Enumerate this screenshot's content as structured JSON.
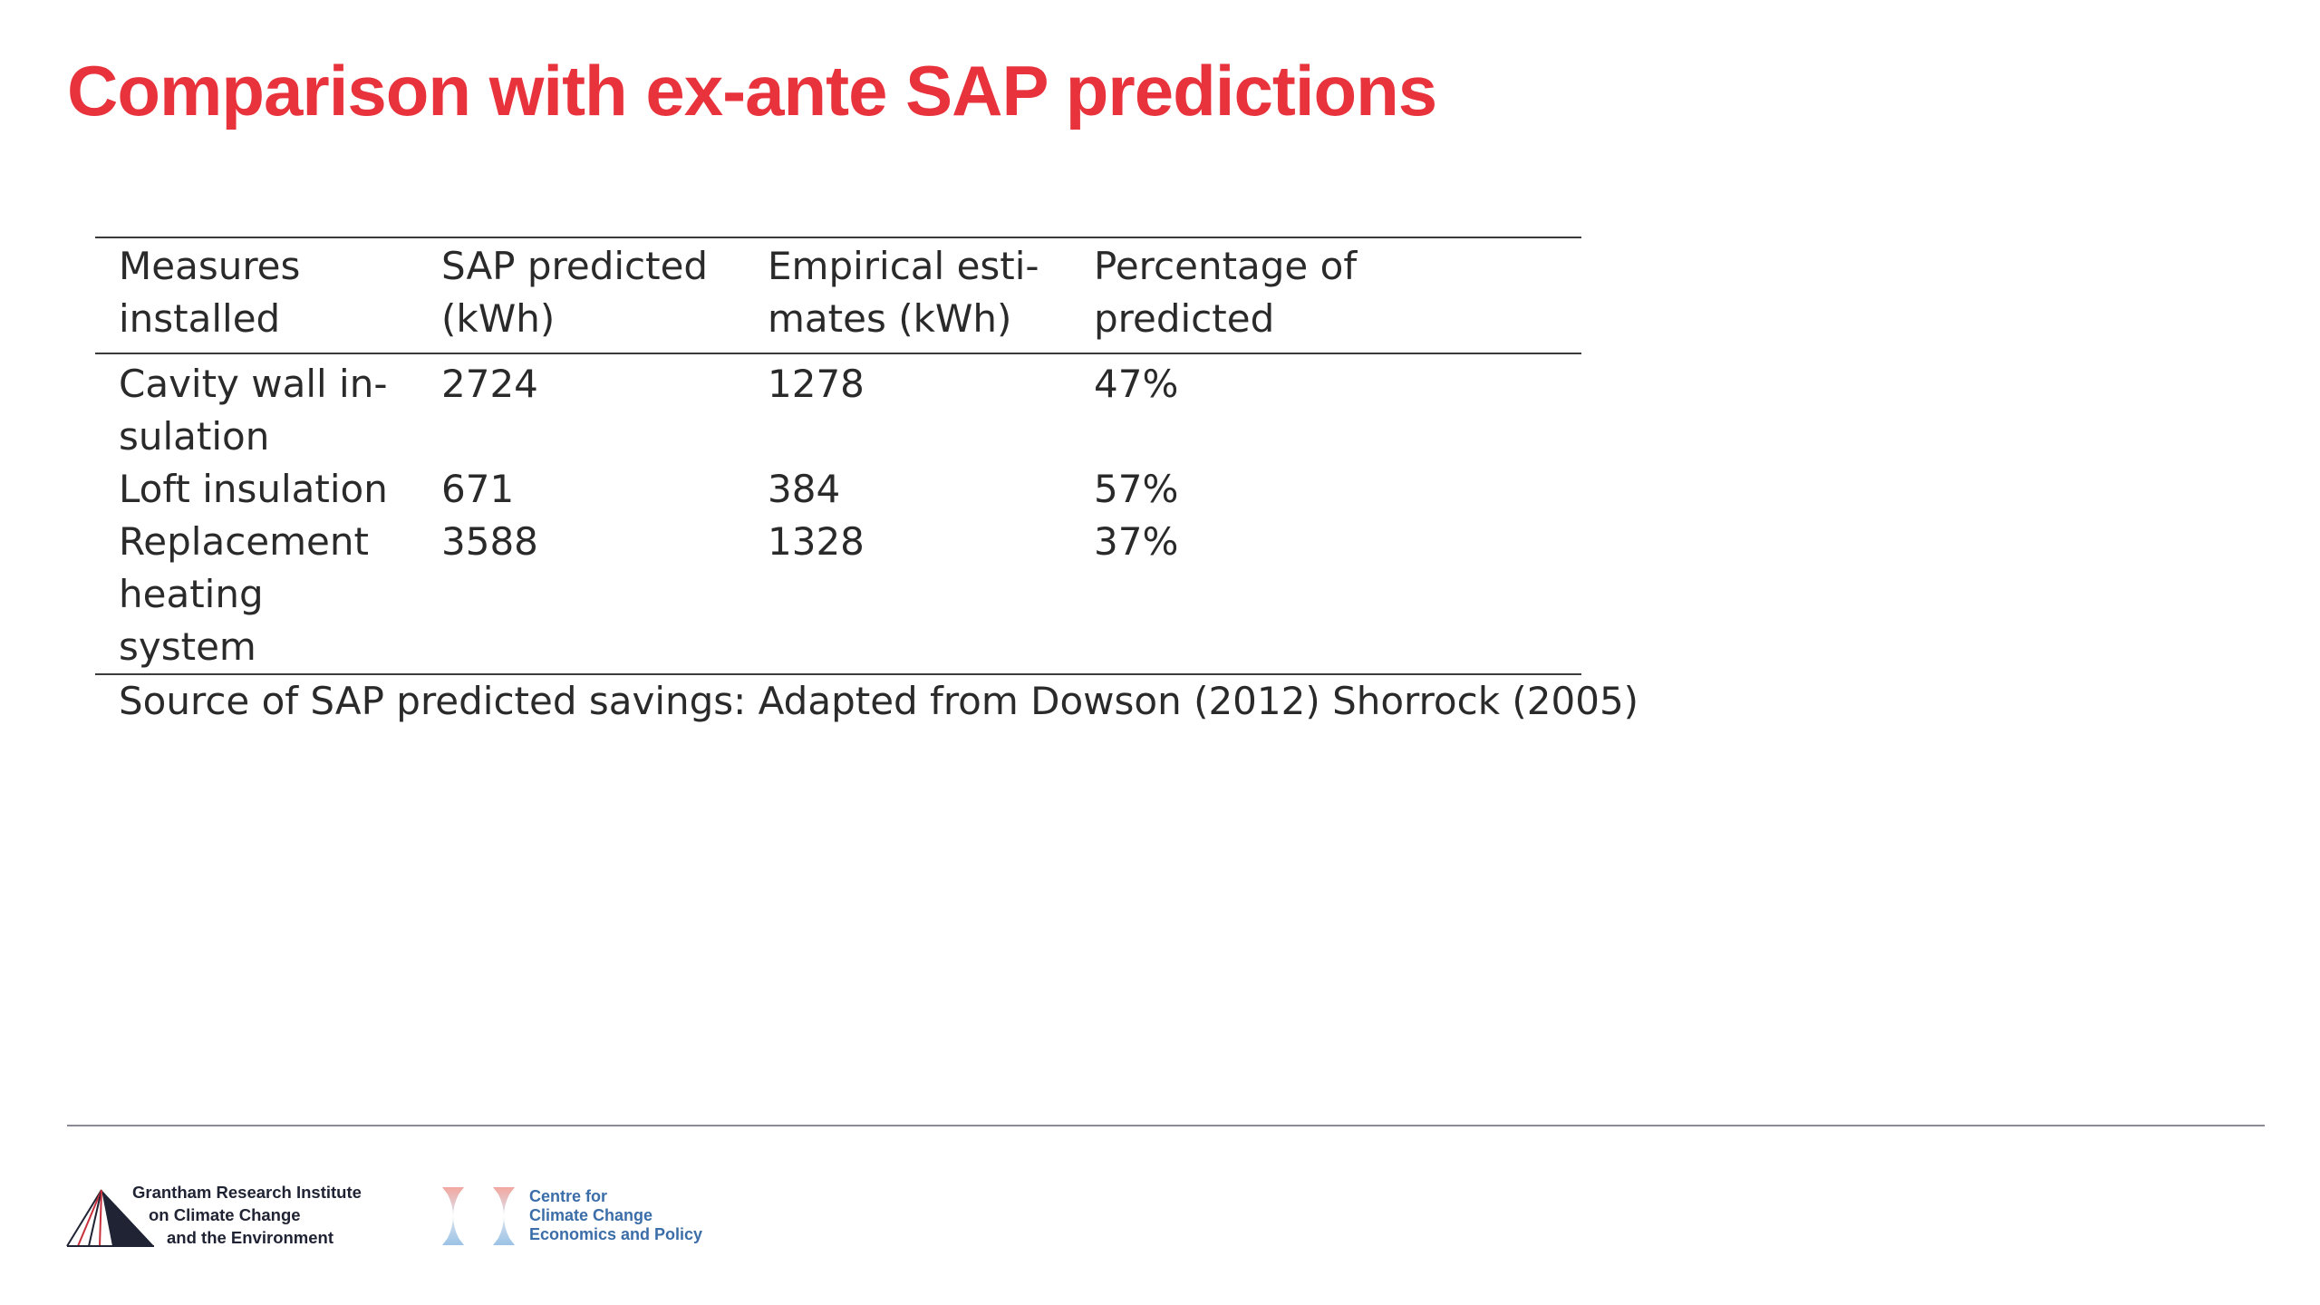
{
  "slide": {
    "title": "Comparison with ex-ante SAP predictions"
  },
  "table": {
    "headers": [
      [
        "Measures",
        "installed"
      ],
      [
        "SAP predicted",
        "(kWh)"
      ],
      [
        "Empirical esti-",
        "mates (kWh)"
      ],
      [
        "Percentage of",
        "predicted"
      ]
    ],
    "rows": [
      {
        "measure": [
          "Cavity wall in-",
          "sulation"
        ],
        "sap_predicted": "2724",
        "empirical": "1278",
        "percentage": "47%"
      },
      {
        "measure": [
          "Loft insulation"
        ],
        "sap_predicted": "671",
        "empirical": "384",
        "percentage": "57%"
      },
      {
        "measure": [
          "Replacement",
          "heating system"
        ],
        "sap_predicted": "3588",
        "empirical": "1328",
        "percentage": "37%"
      }
    ],
    "source_note": "Source of SAP predicted savings: Adapted from Dowson (2012) Shorrock (2005)"
  },
  "footer": {
    "logo_grantham": {
      "lines": [
        "Grantham Research Institute",
        "on Climate Change",
        "and the Environment"
      ],
      "color": "#1f2333"
    },
    "logo_cccep": {
      "lines": [
        "Centre for",
        "Climate Change",
        "Economics and Policy"
      ],
      "color": "#3b6ea8"
    }
  },
  "colors": {
    "title": "#e8323c",
    "text": "#2a2a2a",
    "rule": "#3a3a3a",
    "footer_rule": "#8a8a96"
  }
}
